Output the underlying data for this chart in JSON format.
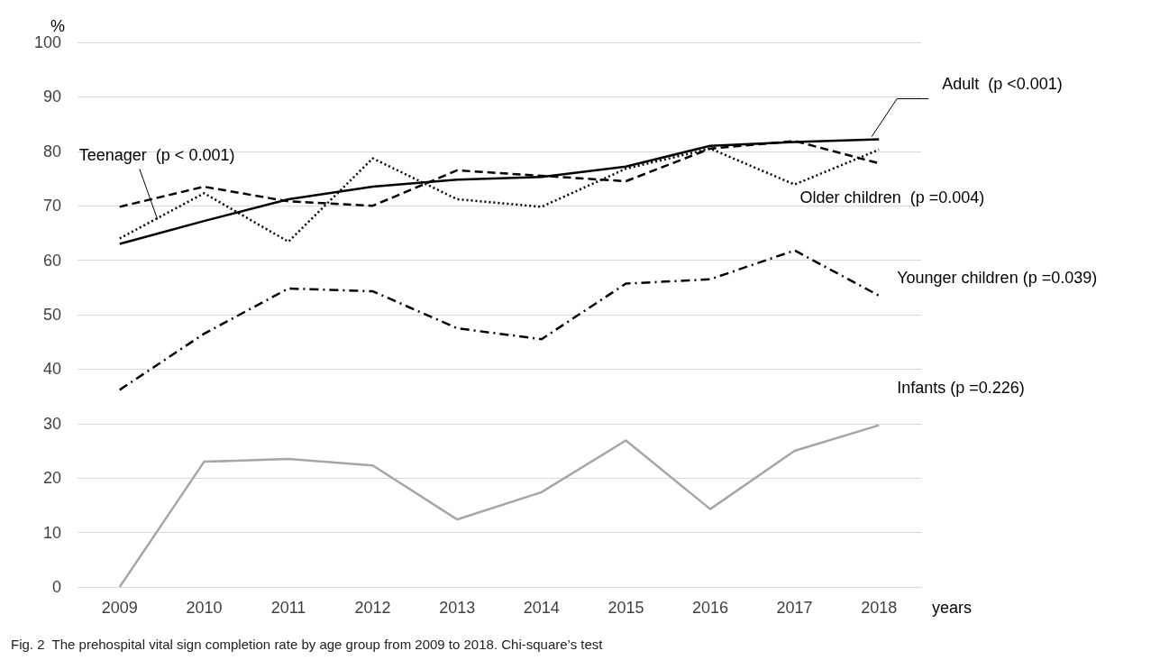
{
  "chart_data": {
    "type": "line",
    "ylabel": "%",
    "xlabel": "years",
    "categories": [
      "2009",
      "2010",
      "2011",
      "2012",
      "2013",
      "2014",
      "2015",
      "2016",
      "2017",
      "2018"
    ],
    "series": [
      {
        "name": "Adult  (p <0.001)",
        "color": "#000000",
        "line_style": "solid",
        "values": [
          63,
          67.2,
          71.2,
          73.5,
          74.8,
          75.3,
          77.2,
          81,
          81.7,
          82.2
        ]
      },
      {
        "name": "Teenager  (p < 0.001)",
        "color": "#000000",
        "line_style": "dashed",
        "values": [
          69.8,
          73.5,
          70.8,
          70,
          76.5,
          75.5,
          74.5,
          80.5,
          81.9,
          77.8
        ]
      },
      {
        "name": "Older children  (p =0.004)",
        "color": "#000000",
        "line_style": "dotted",
        "values": [
          64,
          72.3,
          63.4,
          78.7,
          71.2,
          69.8,
          76.8,
          80.5,
          73.9,
          80.3
        ]
      },
      {
        "name": "Younger children (p =0.039)",
        "color": "#000000",
        "line_style": "dashdot",
        "values": [
          36.2,
          46.5,
          54.8,
          54.3,
          47.5,
          45.5,
          55.7,
          56.5,
          61.8,
          53.5
        ]
      },
      {
        "name": "Infants (p =0.226)",
        "color": "#a6a6a6",
        "line_style": "solid",
        "values": [
          0,
          23,
          23.5,
          22.3,
          12.4,
          17.4,
          26.9,
          14.3,
          25,
          29.7
        ]
      }
    ],
    "ylim": [
      0,
      100
    ],
    "yticks": [
      0,
      10,
      20,
      30,
      40,
      50,
      60,
      70,
      80,
      90,
      100
    ],
    "grid": "y",
    "legend": false,
    "marker": "none",
    "annotations": [
      "Fig. 2  The prehospital vital sign completion rate by age group from 2009 to 2018. Chi-square’s test"
    ]
  }
}
